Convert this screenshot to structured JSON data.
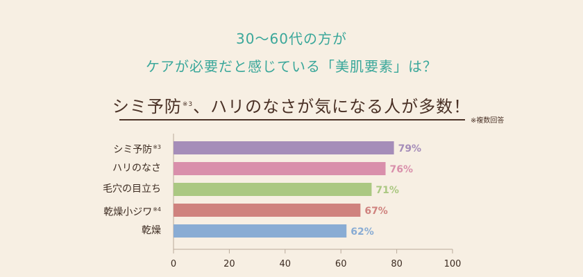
{
  "header": {
    "line1": "30～60代の方が",
    "line2": "ケアが必要だと感じている「美肌要素」は？",
    "headline_before": "シミ予防",
    "headline_mark": "※3",
    "headline_after": "、ハリのなさが気になる人が多数！",
    "note": "※複数回答"
  },
  "chart_data": {
    "type": "bar",
    "orientation": "horizontal",
    "categories": [
      "シミ予防",
      "ハリのなさ",
      "毛穴の目立ち",
      "乾燥小ジワ",
      "乾燥"
    ],
    "category_marks": [
      "※3",
      "",
      "",
      "※4",
      ""
    ],
    "values": [
      79,
      76,
      71,
      67,
      62
    ],
    "value_labels": [
      "79%",
      "76%",
      "71%",
      "67%",
      "62%"
    ],
    "colors": [
      "#a58db9",
      "#d98fab",
      "#abc882",
      "#cf827e",
      "#89acd4"
    ],
    "xlim": [
      0,
      100
    ],
    "xticks": [
      0,
      20,
      40,
      60,
      80,
      100
    ],
    "title": "",
    "xlabel": "",
    "ylabel": "",
    "grid": false
  }
}
